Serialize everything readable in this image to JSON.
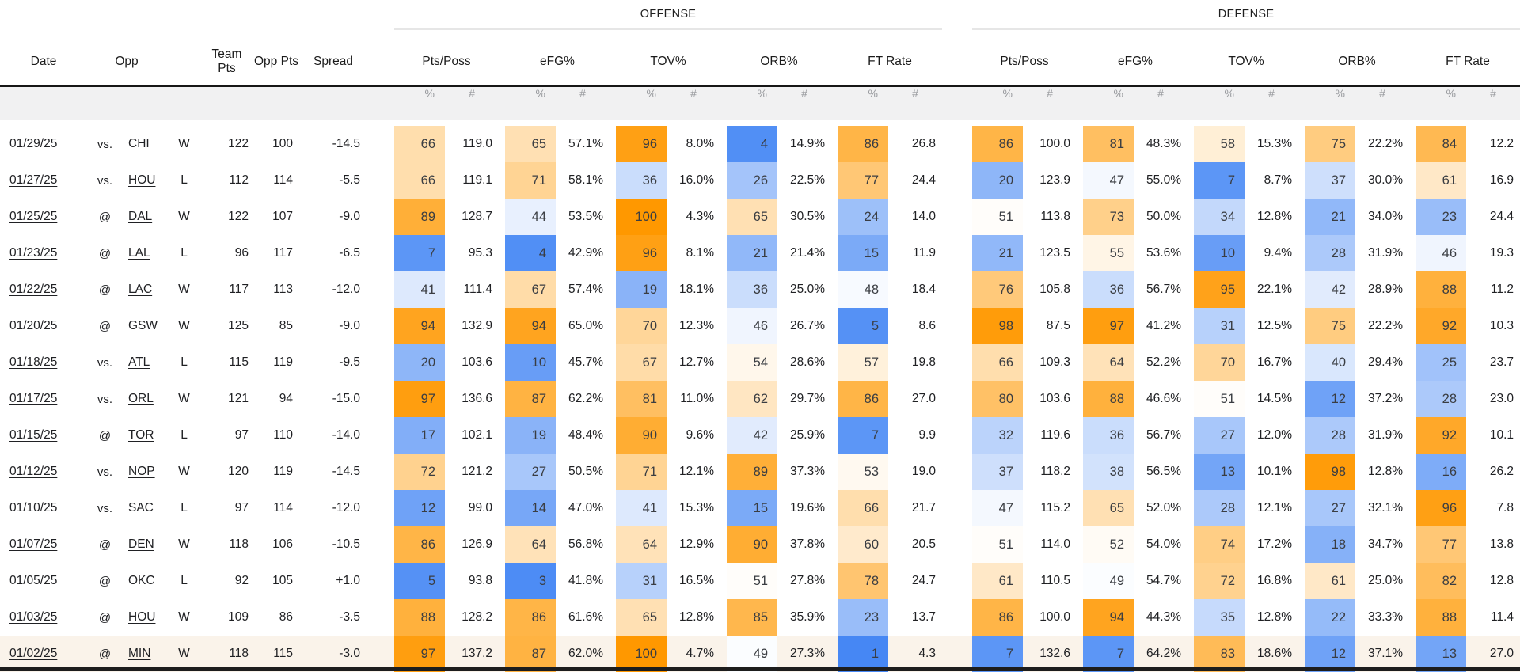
{
  "table": {
    "group_headers": {
      "offense": "OFFENSE",
      "defense": "DEFENSE"
    },
    "columns": {
      "date": "Date",
      "opp": "Opp",
      "team_pts": "Team Pts",
      "opp_pts": "Opp Pts",
      "spread": "Spread",
      "stats": [
        "Pts/Poss",
        "eFG%",
        "TOV%",
        "ORB%",
        "FT Rate"
      ],
      "sub_pct": "%",
      "sub_num": "#"
    },
    "colors": {
      "percentile_low": "#4285f4",
      "percentile_mid": "#ffffff",
      "percentile_high": "#ff9800",
      "highlight_row_bg": "#faf3ea",
      "subheader_bg": "#f1f1f2"
    },
    "rows": [
      {
        "date": "01/29/25",
        "loc": "vs.",
        "opp": "CHI",
        "result": "W",
        "team_pts": "122",
        "opp_pts": "100",
        "spread": "-14.5",
        "off": [
          [
            66,
            "119.0"
          ],
          [
            65,
            "57.1%"
          ],
          [
            96,
            "8.0%"
          ],
          [
            4,
            "14.9%"
          ],
          [
            86,
            "26.8"
          ]
        ],
        "def": [
          [
            86,
            "100.0"
          ],
          [
            81,
            "48.3%"
          ],
          [
            58,
            "15.3%"
          ],
          [
            75,
            "22.2%"
          ],
          [
            84,
            "12.2"
          ]
        ],
        "highlight": false
      },
      {
        "date": "01/27/25",
        "loc": "vs.",
        "opp": "HOU",
        "result": "L",
        "team_pts": "112",
        "opp_pts": "114",
        "spread": "-5.5",
        "off": [
          [
            66,
            "119.1"
          ],
          [
            71,
            "58.1%"
          ],
          [
            36,
            "16.0%"
          ],
          [
            26,
            "22.5%"
          ],
          [
            77,
            "24.4"
          ]
        ],
        "def": [
          [
            20,
            "123.9"
          ],
          [
            47,
            "55.0%"
          ],
          [
            7,
            "8.7%"
          ],
          [
            37,
            "30.0%"
          ],
          [
            61,
            "16.9"
          ]
        ],
        "highlight": false
      },
      {
        "date": "01/25/25",
        "loc": "@",
        "opp": "DAL",
        "result": "W",
        "team_pts": "122",
        "opp_pts": "107",
        "spread": "-9.0",
        "off": [
          [
            89,
            "128.7"
          ],
          [
            44,
            "53.5%"
          ],
          [
            100,
            "4.3%"
          ],
          [
            65,
            "30.5%"
          ],
          [
            24,
            "14.0"
          ]
        ],
        "def": [
          [
            51,
            "113.8"
          ],
          [
            73,
            "50.0%"
          ],
          [
            34,
            "12.8%"
          ],
          [
            21,
            "34.0%"
          ],
          [
            23,
            "24.4"
          ]
        ],
        "highlight": false
      },
      {
        "date": "01/23/25",
        "loc": "@",
        "opp": "LAL",
        "result": "L",
        "team_pts": "96",
        "opp_pts": "117",
        "spread": "-6.5",
        "off": [
          [
            7,
            "95.3"
          ],
          [
            4,
            "42.9%"
          ],
          [
            96,
            "8.1%"
          ],
          [
            21,
            "21.4%"
          ],
          [
            15,
            "11.9"
          ]
        ],
        "def": [
          [
            21,
            "123.5"
          ],
          [
            55,
            "53.6%"
          ],
          [
            10,
            "9.4%"
          ],
          [
            28,
            "31.9%"
          ],
          [
            46,
            "19.3"
          ]
        ],
        "highlight": false
      },
      {
        "date": "01/22/25",
        "loc": "@",
        "opp": "LAC",
        "result": "W",
        "team_pts": "117",
        "opp_pts": "113",
        "spread": "-12.0",
        "off": [
          [
            41,
            "111.4"
          ],
          [
            67,
            "57.4%"
          ],
          [
            19,
            "18.1%"
          ],
          [
            36,
            "25.0%"
          ],
          [
            48,
            "18.4"
          ]
        ],
        "def": [
          [
            76,
            "105.8"
          ],
          [
            36,
            "56.7%"
          ],
          [
            95,
            "22.1%"
          ],
          [
            42,
            "28.9%"
          ],
          [
            88,
            "11.2"
          ]
        ],
        "highlight": false
      },
      {
        "date": "01/20/25",
        "loc": "@",
        "opp": "GSW",
        "result": "W",
        "team_pts": "125",
        "opp_pts": "85",
        "spread": "-9.0",
        "off": [
          [
            94,
            "132.9"
          ],
          [
            94,
            "65.0%"
          ],
          [
            70,
            "12.3%"
          ],
          [
            46,
            "26.7%"
          ],
          [
            5,
            "8.6"
          ]
        ],
        "def": [
          [
            98,
            "87.5"
          ],
          [
            97,
            "41.2%"
          ],
          [
            31,
            "12.5%"
          ],
          [
            75,
            "22.2%"
          ],
          [
            92,
            "10.3"
          ]
        ],
        "highlight": false
      },
      {
        "date": "01/18/25",
        "loc": "vs.",
        "opp": "ATL",
        "result": "L",
        "team_pts": "115",
        "opp_pts": "119",
        "spread": "-9.5",
        "off": [
          [
            20,
            "103.6"
          ],
          [
            10,
            "45.7%"
          ],
          [
            67,
            "12.7%"
          ],
          [
            54,
            "28.6%"
          ],
          [
            57,
            "19.8"
          ]
        ],
        "def": [
          [
            66,
            "109.3"
          ],
          [
            64,
            "52.2%"
          ],
          [
            70,
            "16.7%"
          ],
          [
            40,
            "29.4%"
          ],
          [
            25,
            "23.7"
          ]
        ],
        "highlight": false
      },
      {
        "date": "01/17/25",
        "loc": "vs.",
        "opp": "ORL",
        "result": "W",
        "team_pts": "121",
        "opp_pts": "94",
        "spread": "-15.0",
        "off": [
          [
            97,
            "136.6"
          ],
          [
            87,
            "62.2%"
          ],
          [
            81,
            "11.0%"
          ],
          [
            62,
            "29.7%"
          ],
          [
            86,
            "27.0"
          ]
        ],
        "def": [
          [
            80,
            "103.6"
          ],
          [
            88,
            "46.6%"
          ],
          [
            51,
            "14.5%"
          ],
          [
            12,
            "37.2%"
          ],
          [
            28,
            "23.0"
          ]
        ],
        "highlight": false
      },
      {
        "date": "01/15/25",
        "loc": "@",
        "opp": "TOR",
        "result": "L",
        "team_pts": "97",
        "opp_pts": "110",
        "spread": "-14.0",
        "off": [
          [
            17,
            "102.1"
          ],
          [
            19,
            "48.4%"
          ],
          [
            90,
            "9.6%"
          ],
          [
            42,
            "25.9%"
          ],
          [
            7,
            "9.9"
          ]
        ],
        "def": [
          [
            32,
            "119.6"
          ],
          [
            36,
            "56.7%"
          ],
          [
            27,
            "12.0%"
          ],
          [
            28,
            "31.9%"
          ],
          [
            92,
            "10.1"
          ]
        ],
        "highlight": false
      },
      {
        "date": "01/12/25",
        "loc": "vs.",
        "opp": "NOP",
        "result": "W",
        "team_pts": "120",
        "opp_pts": "119",
        "spread": "-14.5",
        "off": [
          [
            72,
            "121.2"
          ],
          [
            27,
            "50.5%"
          ],
          [
            71,
            "12.1%"
          ],
          [
            89,
            "37.3%"
          ],
          [
            53,
            "19.0"
          ]
        ],
        "def": [
          [
            37,
            "118.2"
          ],
          [
            38,
            "56.5%"
          ],
          [
            13,
            "10.1%"
          ],
          [
            98,
            "12.8%"
          ],
          [
            16,
            "26.2"
          ]
        ],
        "highlight": false
      },
      {
        "date": "01/10/25",
        "loc": "vs.",
        "opp": "SAC",
        "result": "L",
        "team_pts": "97",
        "opp_pts": "114",
        "spread": "-12.0",
        "off": [
          [
            12,
            "99.0"
          ],
          [
            14,
            "47.0%"
          ],
          [
            41,
            "15.3%"
          ],
          [
            15,
            "19.6%"
          ],
          [
            66,
            "21.7"
          ]
        ],
        "def": [
          [
            47,
            "115.2"
          ],
          [
            65,
            "52.0%"
          ],
          [
            28,
            "12.1%"
          ],
          [
            27,
            "32.1%"
          ],
          [
            96,
            "7.8"
          ]
        ],
        "highlight": false
      },
      {
        "date": "01/07/25",
        "loc": "@",
        "opp": "DEN",
        "result": "W",
        "team_pts": "118",
        "opp_pts": "106",
        "spread": "-10.5",
        "off": [
          [
            86,
            "126.9"
          ],
          [
            64,
            "56.8%"
          ],
          [
            64,
            "12.9%"
          ],
          [
            90,
            "37.8%"
          ],
          [
            60,
            "20.5"
          ]
        ],
        "def": [
          [
            51,
            "114.0"
          ],
          [
            52,
            "54.0%"
          ],
          [
            74,
            "17.2%"
          ],
          [
            18,
            "34.7%"
          ],
          [
            77,
            "13.8"
          ]
        ],
        "highlight": false
      },
      {
        "date": "01/05/25",
        "loc": "@",
        "opp": "OKC",
        "result": "L",
        "team_pts": "92",
        "opp_pts": "105",
        "spread": "+1.0",
        "off": [
          [
            5,
            "93.8"
          ],
          [
            3,
            "41.8%"
          ],
          [
            31,
            "16.5%"
          ],
          [
            51,
            "27.8%"
          ],
          [
            78,
            "24.7"
          ]
        ],
        "def": [
          [
            61,
            "110.5"
          ],
          [
            49,
            "54.7%"
          ],
          [
            72,
            "16.8%"
          ],
          [
            61,
            "25.0%"
          ],
          [
            82,
            "12.8"
          ]
        ],
        "highlight": false
      },
      {
        "date": "01/03/25",
        "loc": "@",
        "opp": "HOU",
        "result": "W",
        "team_pts": "109",
        "opp_pts": "86",
        "spread": "-3.5",
        "off": [
          [
            88,
            "128.2"
          ],
          [
            86,
            "61.6%"
          ],
          [
            65,
            "12.8%"
          ],
          [
            85,
            "35.9%"
          ],
          [
            23,
            "13.7"
          ]
        ],
        "def": [
          [
            86,
            "100.0"
          ],
          [
            94,
            "44.3%"
          ],
          [
            35,
            "12.8%"
          ],
          [
            22,
            "33.3%"
          ],
          [
            88,
            "11.4"
          ]
        ],
        "highlight": false
      },
      {
        "date": "01/02/25",
        "loc": "@",
        "opp": "MIN",
        "result": "W",
        "team_pts": "118",
        "opp_pts": "115",
        "spread": "-3.0",
        "off": [
          [
            97,
            "137.2"
          ],
          [
            87,
            "62.0%"
          ],
          [
            100,
            "4.7%"
          ],
          [
            49,
            "27.3%"
          ],
          [
            1,
            "4.3"
          ]
        ],
        "def": [
          [
            7,
            "132.6"
          ],
          [
            7,
            "64.2%"
          ],
          [
            83,
            "18.6%"
          ],
          [
            12,
            "37.1%"
          ],
          [
            13,
            "27.0"
          ]
        ],
        "highlight": true
      }
    ]
  }
}
